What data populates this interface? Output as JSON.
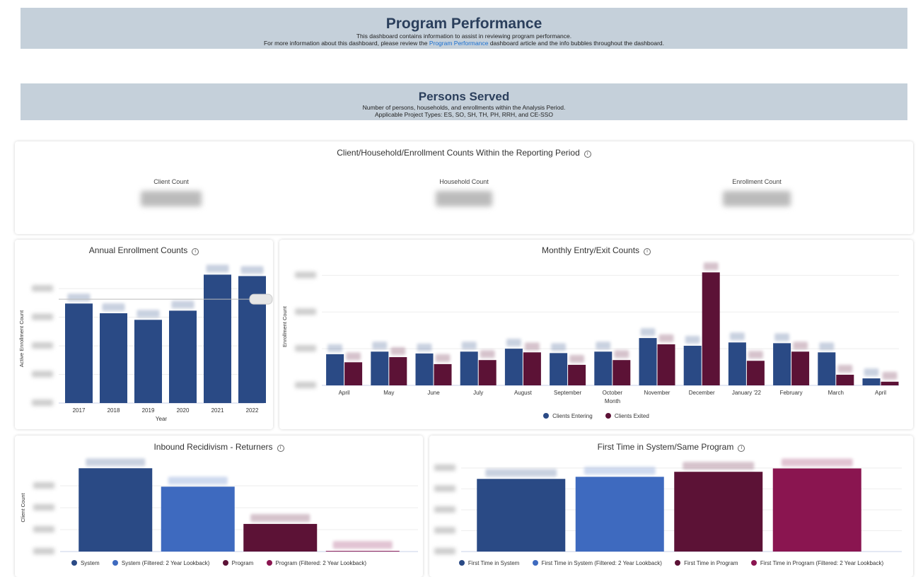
{
  "header": {
    "title": "Program Performance",
    "line1": "This dashboard contains information to assist in reviewing program performance.",
    "line2_pre": "For more information about this dashboard, please review the ",
    "line2_link": "Program Performance",
    "line2_post": " dashboard article and the info bubbles throughout the dashboard."
  },
  "section": {
    "title": "Persons Served",
    "line1": "Number of persons, households, and enrollments within the Analysis Period.",
    "line2": "Applicable Project Types: ES, SO, SH, TH, PH, RRH, and CE-SSO"
  },
  "kpi_card": {
    "title": "Client/Household/Enrollment Counts Within the Reporting Period",
    "info_icon": "info-icon",
    "items": [
      {
        "label": "Client Count"
      },
      {
        "label": "Household Count"
      },
      {
        "label": "Enrollment Count"
      }
    ]
  },
  "colors": {
    "system": "#2a4a85",
    "system_filtered": "#3e6abf",
    "program": "#5c1236",
    "program_filtered": "#8a1550",
    "banner": "#c5d0da"
  },
  "chart_data": [
    {
      "id": "annual",
      "type": "bar",
      "title": "Annual Enrollment Counts",
      "xlabel": "Year",
      "ylabel": "Active Enrollment Count",
      "categories": [
        "2017",
        "2018",
        "2019",
        "2020",
        "2021",
        "2022"
      ],
      "values": [
        6960,
        6280,
        5820,
        6460,
        8980,
        8880
      ],
      "reference_line": 7260,
      "ylim": [
        0,
        9000
      ],
      "grid": true,
      "value_labels_blurred": true
    },
    {
      "id": "monthly",
      "type": "bar",
      "title": "Monthly Entry/Exit Counts",
      "xlabel": "Month",
      "ylabel": "Enrollment Count",
      "categories": [
        "April",
        "May",
        "June",
        "July",
        "August",
        "September",
        "October",
        "November",
        "December",
        "January '22",
        "February",
        "March",
        "April"
      ],
      "series": [
        {
          "name": "Clients Entering",
          "values": [
            850,
            920,
            870,
            920,
            1000,
            880,
            920,
            1290,
            1080,
            1170,
            1150,
            900,
            190
          ]
        },
        {
          "name": "Clients Exited",
          "values": [
            630,
            770,
            580,
            690,
            900,
            560,
            690,
            1120,
            3080,
            670,
            920,
            290,
            100
          ]
        }
      ],
      "ylim": [
        0,
        3200
      ],
      "grid": true,
      "legend": "bottom",
      "value_labels_blurred": true
    },
    {
      "id": "recidivism",
      "type": "bar",
      "title": "Inbound Recidivism - Returners",
      "ylabel": "Client Count",
      "categories": [
        "System",
        "System (Filtered: 2 Year Lookback)",
        "Program",
        "Program (Filtered: 2 Year Lookback)"
      ],
      "values": [
        1900,
        1480,
        630,
        15
      ],
      "ylim": [
        0,
        2000
      ],
      "grid": true,
      "legend": "bottom",
      "value_labels_blurred": true
    },
    {
      "id": "firsttime",
      "type": "bar",
      "title": "First Time in System/Same Program",
      "categories": [
        "First Time in System",
        "First Time in System (Filtered: 2 Year Lookback)",
        "First Time in Program",
        "First Time in Program (Filtered: 2 Year Lookback)"
      ],
      "values": [
        17400,
        17900,
        19100,
        19900
      ],
      "ylim": [
        0,
        21000
      ],
      "grid": true,
      "legend": "bottom",
      "value_labels_blurred": true
    }
  ]
}
